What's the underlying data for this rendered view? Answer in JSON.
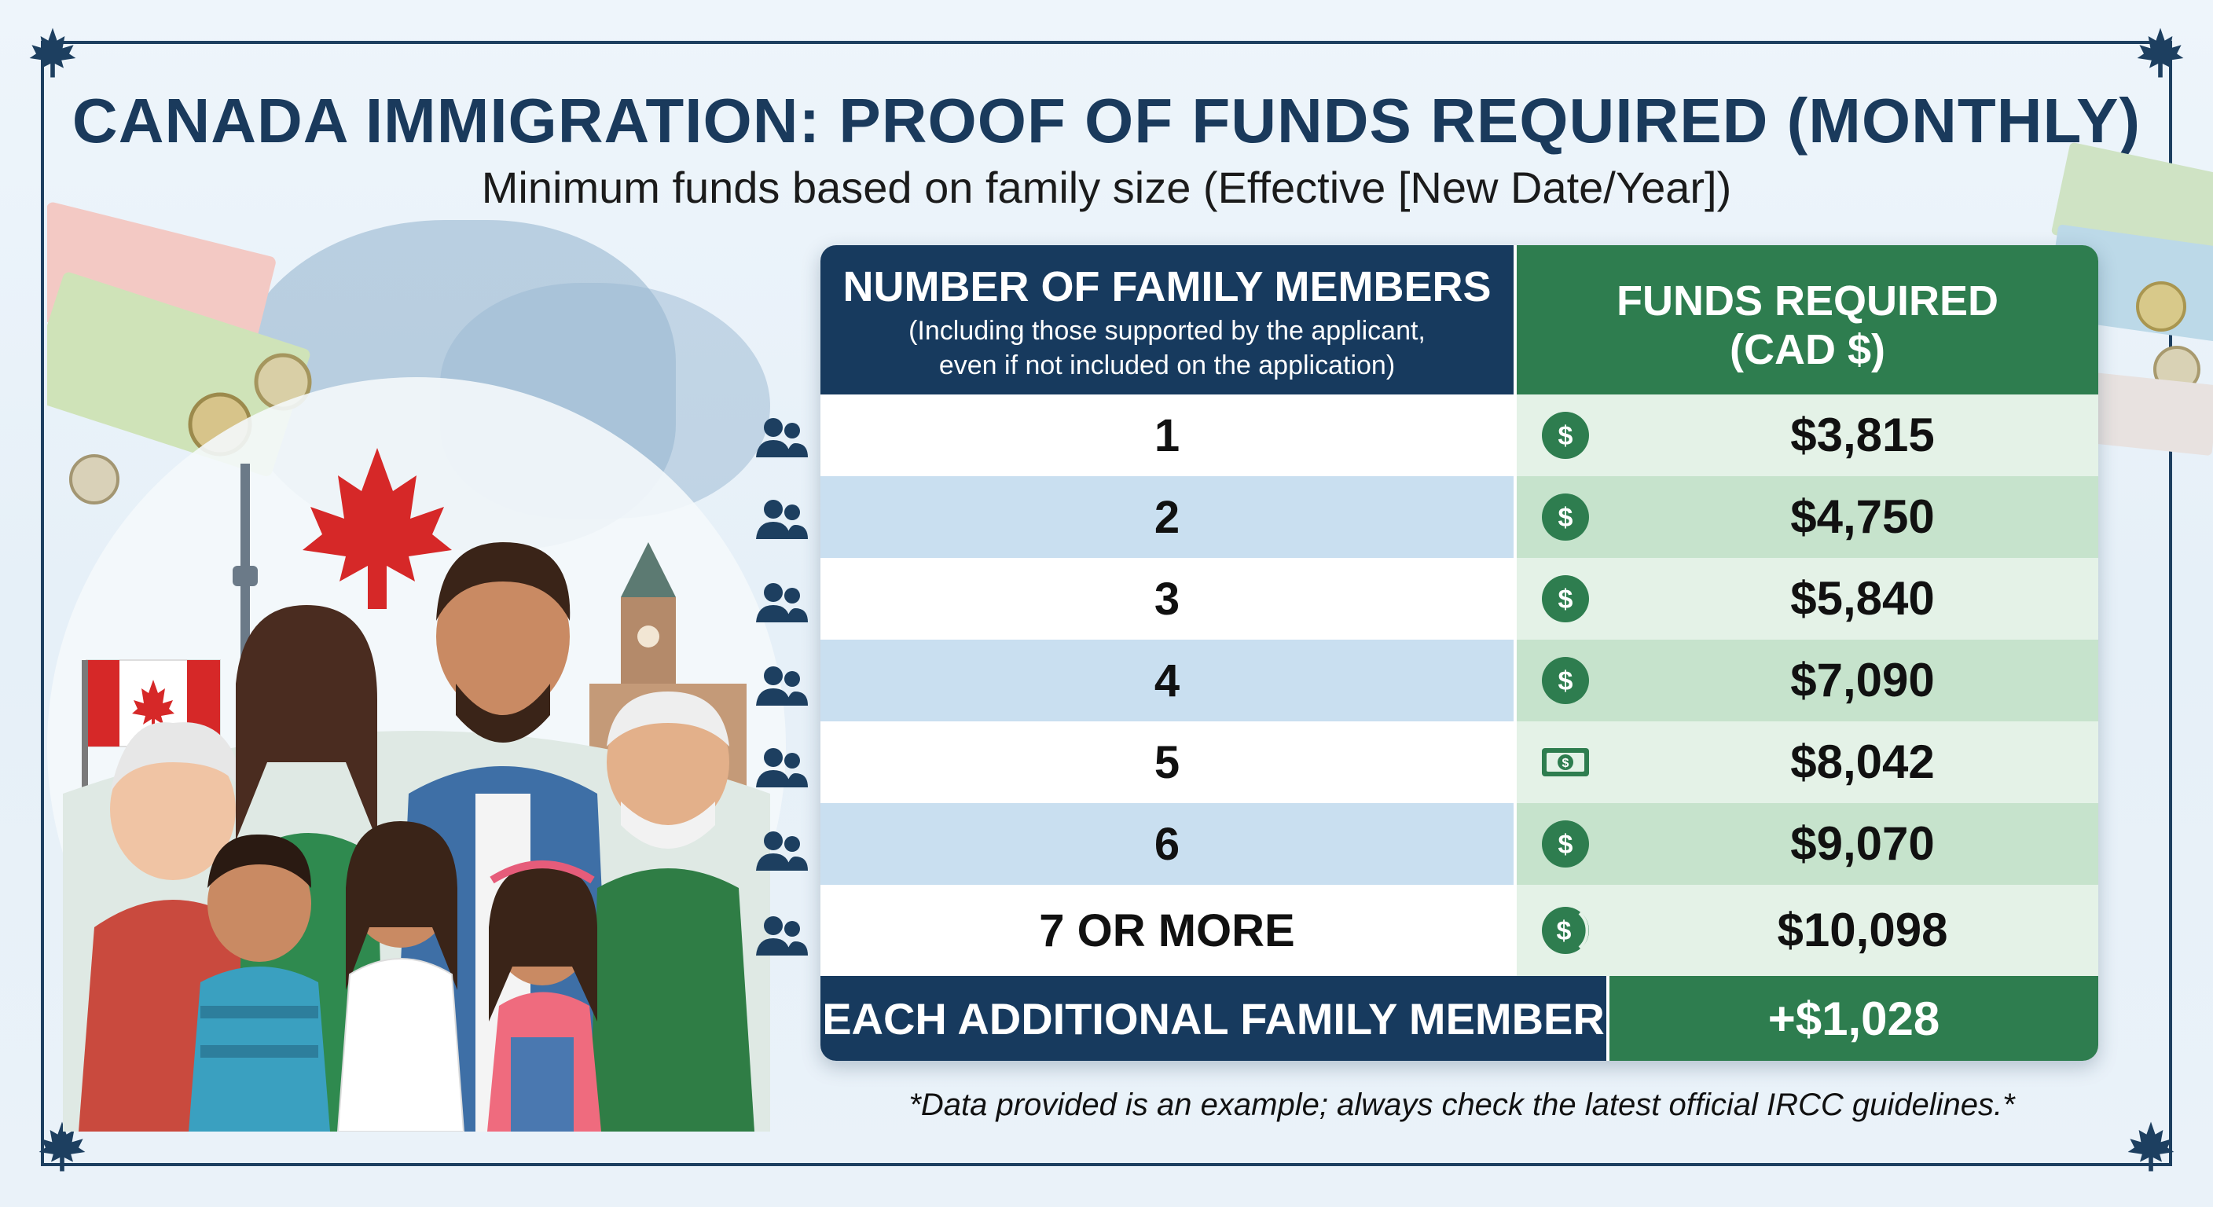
{
  "header": {
    "title": "CANADA IMMIGRATION: PROOF OF FUNDS REQUIRED (MONTHLY)",
    "subtitle": "Minimum funds based on family size (Effective [New Date/Year])"
  },
  "table": {
    "col_members_title": "NUMBER OF FAMILY MEMBERS",
    "col_members_note_line1": "(Including those supported by the applicant,",
    "col_members_note_line2": "even if not included on the application)",
    "col_funds_line1": "FUNDS REQUIRED",
    "col_funds_line2": "(CAD $)",
    "rows": [
      {
        "members": "1",
        "funds": "$3,815"
      },
      {
        "members": "2",
        "funds": "$4,750"
      },
      {
        "members": "3",
        "funds": "$5,840"
      },
      {
        "members": "4",
        "funds": "$7,090"
      },
      {
        "members": "5",
        "funds": "$8,042"
      },
      {
        "members": "6",
        "funds": "$9,070"
      },
      {
        "members": "7 OR MORE",
        "funds": "$10,098"
      }
    ],
    "footer_label": "EACH ADDITIONAL FAMILY MEMBER",
    "footer_value": "+$1,028"
  },
  "note": "*Data provided is an example; always check the latest official IRCC guidelines.*",
  "icons": {
    "row_marker": "people-icon",
    "funds_marker": "dollar-coin-icon",
    "decor": [
      "maple-leaf-icon",
      "banknote-icon"
    ]
  },
  "colors": {
    "navy": "#173a5e",
    "green": "#2e7d4f",
    "light_blue_row": "#c9dff0",
    "light_green_row": "#e4f2e7",
    "maple_red": "#d62828"
  }
}
